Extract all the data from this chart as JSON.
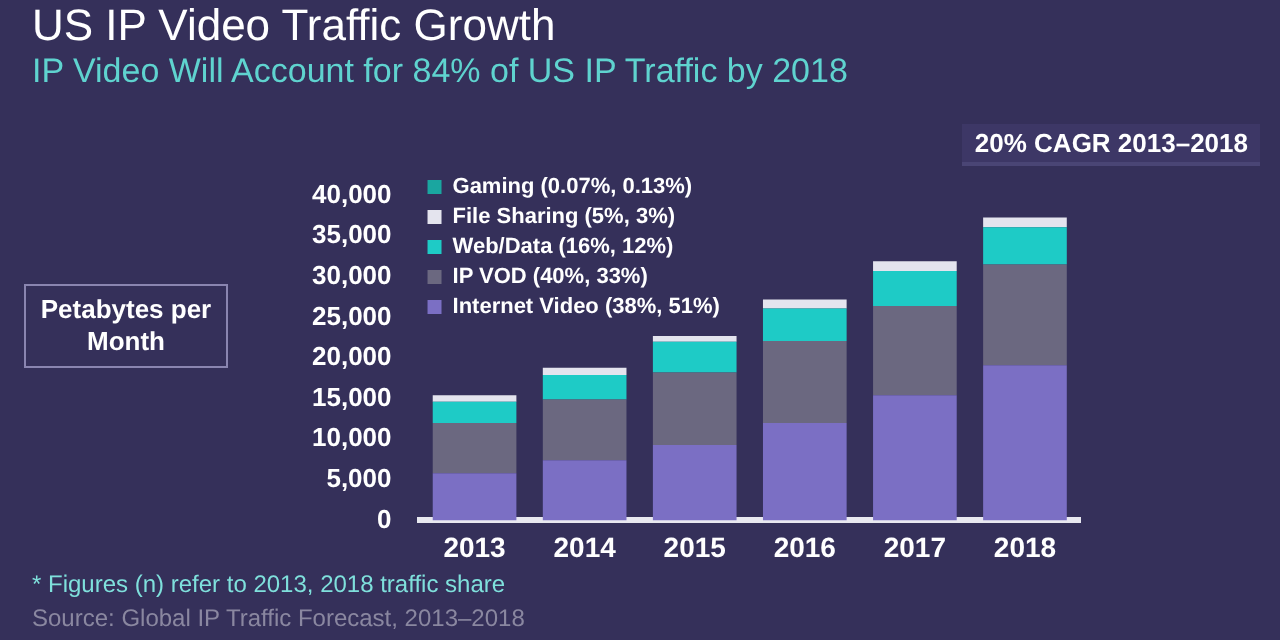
{
  "chart_data": {
    "type": "bar",
    "title": "US IP Video Traffic Growth",
    "subtitle": "IP Video Will Account for 84% of US IP Traffic by 2018",
    "ylabel": "Petabytes per Month",
    "annotations": [
      "20% CAGR  2013–2018",
      "* Figures (n) refer to 2013, 2018 traffic share",
      "Source: Global IP Traffic Forecast, 2013–2018"
    ],
    "categories": [
      "2013",
      "2014",
      "2015",
      "2016",
      "2017",
      "2018"
    ],
    "stacked": true,
    "legend": "top left",
    "grid": false,
    "ylim": [
      0,
      40000
    ],
    "yticks": [
      {
        "value": 0,
        "label": "0"
      },
      {
        "value": 5000,
        "label": "5,000"
      },
      {
        "value": 10000,
        "label": "10,000"
      },
      {
        "value": 15000,
        "label": "15,000"
      },
      {
        "value": 20000,
        "label": "20,000"
      },
      {
        "value": 25000,
        "label": "25,000"
      },
      {
        "value": 30000,
        "label": "30,000"
      },
      {
        "value": 35000,
        "label": "35,000"
      },
      {
        "value": 40000,
        "label": "40,000"
      }
    ],
    "series": [
      {
        "name": "Internet Video (38%, 51%)",
        "color": "#7b6fc4",
        "values": [
          5800,
          7400,
          9300,
          12000,
          15400,
          19100
        ]
      },
      {
        "name": "IP VOD (40%, 33%)",
        "color": "#6b6880",
        "values": [
          6200,
          7500,
          8900,
          10100,
          11000,
          12400
        ]
      },
      {
        "name": "Web/Data (16%, 12%)",
        "color": "#1ecbc6",
        "values": [
          2600,
          3000,
          3800,
          4000,
          4300,
          4600
        ]
      },
      {
        "name": "File Sharing (5%, 3%)",
        "color": "#e4e4ee",
        "values": [
          800,
          900,
          700,
          1100,
          1200,
          1200
        ]
      },
      {
        "name": "Gaming (0.07%, 0.13%)",
        "color": "#1aa6a0",
        "values": [
          null,
          null,
          null,
          null,
          null,
          null
        ]
      }
    ]
  }
}
